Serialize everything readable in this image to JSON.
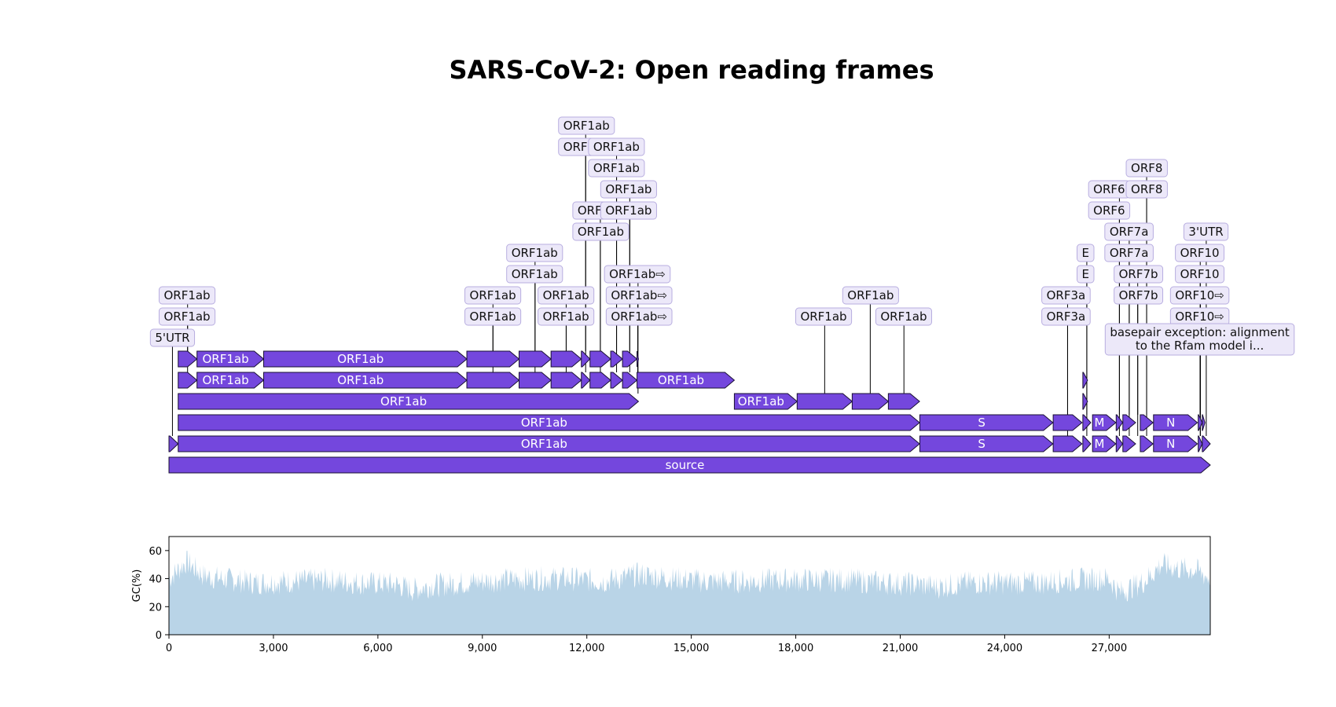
{
  "title": "SARS-CoV-2: Open reading frames",
  "genome": {
    "length": 29903
  },
  "colors": {
    "feature_fill": "#7447dd",
    "feature_stroke": "#1a1033",
    "label_bg": "#ece8f9",
    "label_border": "#b8aee0",
    "gc_fill": "#b9d4e7"
  },
  "features": [
    {
      "start": 0,
      "end": 29903,
      "lvl": 0,
      "label": "source"
    },
    {
      "start": 0,
      "end": 265,
      "lvl": 1,
      "label": ""
    },
    {
      "start": 265,
      "end": 21555,
      "lvl": 1,
      "label": "ORF1ab"
    },
    {
      "start": 21562,
      "end": 25384,
      "lvl": 1,
      "label": "S"
    },
    {
      "start": 25392,
      "end": 26220,
      "lvl": 1,
      "label": ""
    },
    {
      "start": 26244,
      "end": 26472,
      "lvl": 1,
      "label": ""
    },
    {
      "start": 26522,
      "end": 27191,
      "lvl": 1,
      "label": "M"
    },
    {
      "start": 27201,
      "end": 27387,
      "lvl": 1,
      "label": ""
    },
    {
      "start": 27393,
      "end": 27759,
      "lvl": 1,
      "label": ""
    },
    {
      "start": 27893,
      "end": 28259,
      "lvl": 1,
      "label": ""
    },
    {
      "start": 28273,
      "end": 29533,
      "lvl": 1,
      "label": "N"
    },
    {
      "start": 29557,
      "end": 29674,
      "lvl": 1,
      "label": ""
    },
    {
      "start": 29674,
      "end": 29903,
      "lvl": 1,
      "label": ""
    },
    {
      "start": 265,
      "end": 21555,
      "lvl": 2,
      "label": "ORF1ab"
    },
    {
      "start": 21562,
      "end": 25384,
      "lvl": 2,
      "label": "S"
    },
    {
      "start": 25392,
      "end": 26220,
      "lvl": 2,
      "label": ""
    },
    {
      "start": 26244,
      "end": 26472,
      "lvl": 2,
      "label": ""
    },
    {
      "start": 26522,
      "end": 27191,
      "lvl": 2,
      "label": "M"
    },
    {
      "start": 27201,
      "end": 27387,
      "lvl": 2,
      "label": ""
    },
    {
      "start": 27393,
      "end": 27759,
      "lvl": 2,
      "label": ""
    },
    {
      "start": 27893,
      "end": 28259,
      "lvl": 2,
      "label": ""
    },
    {
      "start": 28273,
      "end": 29533,
      "lvl": 2,
      "label": "N"
    },
    {
      "start": 29557,
      "end": 29674,
      "lvl": 2,
      "label": ""
    },
    {
      "start": 29674,
      "end": 29750,
      "lvl": 2,
      "label": ""
    },
    {
      "start": 265,
      "end": 13483,
      "lvl": 3,
      "label": "ORF1ab"
    },
    {
      "start": 16236,
      "end": 18039,
      "lvl": 3,
      "label": "ORF1ab"
    },
    {
      "start": 18039,
      "end": 19620,
      "lvl": 3,
      "label": ""
    },
    {
      "start": 19620,
      "end": 20658,
      "lvl": 3,
      "label": ""
    },
    {
      "start": 20658,
      "end": 21555,
      "lvl": 3,
      "label": ""
    },
    {
      "start": 26244,
      "end": 26380,
      "lvl": 3,
      "label": ""
    },
    {
      "start": 265,
      "end": 805,
      "lvl": 4,
      "label": ""
    },
    {
      "start": 805,
      "end": 2719,
      "lvl": 4,
      "label": "ORF1ab"
    },
    {
      "start": 2719,
      "end": 8554,
      "lvl": 4,
      "label": "ORF1ab"
    },
    {
      "start": 8554,
      "end": 10054,
      "lvl": 4,
      "label": ""
    },
    {
      "start": 10054,
      "end": 10972,
      "lvl": 4,
      "label": ""
    },
    {
      "start": 10972,
      "end": 11842,
      "lvl": 4,
      "label": ""
    },
    {
      "start": 11842,
      "end": 12091,
      "lvl": 4,
      "label": ""
    },
    {
      "start": 12091,
      "end": 12685,
      "lvl": 4,
      "label": ""
    },
    {
      "start": 12685,
      "end": 13024,
      "lvl": 4,
      "label": ""
    },
    {
      "start": 13024,
      "end": 13441,
      "lvl": 4,
      "label": ""
    },
    {
      "start": 13441,
      "end": 16236,
      "lvl": 4,
      "label": "ORF1ab"
    },
    {
      "start": 26244,
      "end": 26380,
      "lvl": 4,
      "label": ""
    },
    {
      "start": 265,
      "end": 805,
      "lvl": 5,
      "label": ""
    },
    {
      "start": 805,
      "end": 2719,
      "lvl": 5,
      "label": "ORF1ab"
    },
    {
      "start": 2719,
      "end": 8554,
      "lvl": 5,
      "label": "ORF1ab"
    },
    {
      "start": 8554,
      "end": 10054,
      "lvl": 5,
      "label": ""
    },
    {
      "start": 10054,
      "end": 10972,
      "lvl": 5,
      "label": ""
    },
    {
      "start": 10972,
      "end": 11842,
      "lvl": 5,
      "label": ""
    },
    {
      "start": 11842,
      "end": 12091,
      "lvl": 5,
      "label": ""
    },
    {
      "start": 12091,
      "end": 12685,
      "lvl": 5,
      "label": ""
    },
    {
      "start": 12685,
      "end": 13024,
      "lvl": 5,
      "label": ""
    },
    {
      "start": 13024,
      "end": 13441,
      "lvl": 5,
      "label": ""
    },
    {
      "start": 13441,
      "end": 13483,
      "lvl": 5,
      "label": ""
    }
  ],
  "labels": [
    {
      "text": "5'UTR",
      "row": 0,
      "pos": 100,
      "anchor": 100,
      "lvl": 1
    },
    {
      "text": "ORF1ab",
      "row": 1,
      "pos": 520,
      "anchor": 535,
      "lvl": 5
    },
    {
      "text": "ORF1ab",
      "row": 2,
      "pos": 520,
      "anchor": 535,
      "lvl": 4
    },
    {
      "text": "ORF1ab",
      "row": 1,
      "pos": 9300,
      "anchor": 9304,
      "lvl": 5
    },
    {
      "text": "ORF1ab",
      "row": 2,
      "pos": 9300,
      "anchor": 9304,
      "lvl": 4
    },
    {
      "text": "ORF1ab",
      "row": 3,
      "pos": 10500,
      "anchor": 10513,
      "lvl": 5
    },
    {
      "text": "ORF1ab",
      "row": 4,
      "pos": 10500,
      "anchor": 10513,
      "lvl": 4
    },
    {
      "text": "ORF1ab",
      "row": 1,
      "pos": 11400,
      "anchor": 11407,
      "lvl": 5
    },
    {
      "text": "ORF1ab",
      "row": 2,
      "pos": 11400,
      "anchor": 11407,
      "lvl": 4
    },
    {
      "text": "ORF1ab",
      "row": 5,
      "pos": 12400,
      "anchor": 12388,
      "lvl": 5
    },
    {
      "text": "ORF1ab",
      "row": 6,
      "pos": 12400,
      "anchor": 12388,
      "lvl": 4
    },
    {
      "text": "ORF1ab",
      "row": 9,
      "pos": 11990,
      "anchor": 11966,
      "lvl": 5
    },
    {
      "text": "ORF1ab",
      "row": 10,
      "pos": 11990,
      "anchor": 11966,
      "lvl": 4
    },
    {
      "text": "ORF1ab",
      "row": 8,
      "pos": 12850,
      "anchor": 12854,
      "lvl": 5
    },
    {
      "text": "ORF1ab",
      "row": 9,
      "pos": 12850,
      "anchor": 12854,
      "lvl": 4
    },
    {
      "text": "ORF1ab",
      "row": 6,
      "pos": 13200,
      "anchor": 13232,
      "lvl": 5
    },
    {
      "text": "ORF1ab",
      "row": 7,
      "pos": 13200,
      "anchor": 13232,
      "lvl": 4
    },
    {
      "text": "ORF1ab⇨",
      "row": 1,
      "pos": 13500,
      "anchor": 13462,
      "lvl": 5
    },
    {
      "text": "ORF1ab⇨",
      "row": 2,
      "pos": 13500,
      "anchor": 13462,
      "lvl": 4
    },
    {
      "text": "ORF1ab⇨",
      "row": 3,
      "pos": 13450,
      "anchor": 13470,
      "lvl": 3
    },
    {
      "text": "ORF1ab",
      "row": 1,
      "pos": 18800,
      "anchor": 18830,
      "lvl": 3
    },
    {
      "text": "ORF1ab",
      "row": 2,
      "pos": 20150,
      "anchor": 20139,
      "lvl": 3
    },
    {
      "text": "ORF1ab",
      "row": 1,
      "pos": 21100,
      "anchor": 21106,
      "lvl": 3
    },
    {
      "text": "ORF3a",
      "row": 1,
      "pos": 25760,
      "anchor": 25806,
      "lvl": 2
    },
    {
      "text": "ORF3a",
      "row": 2,
      "pos": 25760,
      "anchor": 25806,
      "lvl": 1
    },
    {
      "text": "E",
      "row": 3,
      "pos": 26320,
      "anchor": 26358,
      "lvl": 2
    },
    {
      "text": "E",
      "row": 4,
      "pos": 26320,
      "anchor": 26358,
      "lvl": 1
    },
    {
      "text": "ORF6",
      "row": 6,
      "pos": 27000,
      "anchor": 27294,
      "lvl": 2
    },
    {
      "text": "ORF6",
      "row": 7,
      "pos": 27000,
      "anchor": 27294,
      "lvl": 1
    },
    {
      "text": "ORF7a",
      "row": 4,
      "pos": 27570,
      "anchor": 27576,
      "lvl": 2
    },
    {
      "text": "ORF7a",
      "row": 5,
      "pos": 27570,
      "anchor": 27576,
      "lvl": 1
    },
    {
      "text": "ORF7b",
      "row": 2,
      "pos": 27840,
      "anchor": 27820,
      "lvl": 2
    },
    {
      "text": "ORF7b",
      "row": 3,
      "pos": 27840,
      "anchor": 27820,
      "lvl": 1
    },
    {
      "text": "ORF8",
      "row": 7,
      "pos": 28080,
      "anchor": 28076,
      "lvl": 2
    },
    {
      "text": "ORF8",
      "row": 8,
      "pos": 28080,
      "anchor": 28076,
      "lvl": 1
    },
    {
      "text": "3'UTR",
      "row": 5,
      "pos": 29780,
      "anchor": 29788,
      "lvl": 1
    },
    {
      "text": "ORF10",
      "row": 3,
      "pos": 29600,
      "anchor": 29615,
      "lvl": 2
    },
    {
      "text": "ORF10",
      "row": 4,
      "pos": 29600,
      "anchor": 29615,
      "lvl": 1
    },
    {
      "text": "ORF10⇨",
      "row": 1,
      "pos": 29600,
      "anchor": 29620,
      "lvl": 2
    },
    {
      "text": "ORF10⇨",
      "row": 2,
      "pos": 29600,
      "anchor": 29620,
      "lvl": 1
    },
    {
      "text": "basepair exception: alignment\nto the Rfam model i...",
      "row": 0,
      "pos": 29600,
      "anchor": 29610,
      "lvl": 2,
      "multiline": true
    }
  ],
  "chart_data": {
    "type": "area",
    "ylabel": "GC(%)",
    "xlim": [
      0,
      29903
    ],
    "ylim": [
      0,
      70
    ],
    "yticks": [
      0,
      20,
      40,
      60
    ],
    "xticks": [
      0,
      3000,
      6000,
      9000,
      12000,
      15000,
      18000,
      21000,
      24000,
      27000
    ],
    "xtick_labels": [
      "0",
      "3,000",
      "6,000",
      "9,000",
      "12,000",
      "15,000",
      "18,000",
      "21,000",
      "24,000",
      "27,000"
    ],
    "envelope": {
      "x": [
        0,
        500,
        1000,
        1500,
        2500,
        3500,
        4500,
        5500,
        6500,
        7000,
        7500,
        8500,
        9500,
        10500,
        11500,
        12500,
        13500,
        14500,
        15500,
        16500,
        17500,
        18500,
        19500,
        20500,
        21500,
        22000,
        23000,
        24000,
        25000,
        26000,
        27000,
        27300,
        28000,
        28500,
        29000,
        29500,
        29903
      ],
      "y": [
        40,
        52,
        42,
        40,
        37,
        38,
        39,
        37,
        36,
        32,
        35,
        37,
        39,
        40,
        40,
        38,
        43,
        40,
        38,
        38,
        39,
        39,
        39,
        37,
        36,
        34,
        37,
        37,
        37,
        39,
        40,
        30,
        38,
        50,
        47,
        46,
        40
      ]
    }
  }
}
